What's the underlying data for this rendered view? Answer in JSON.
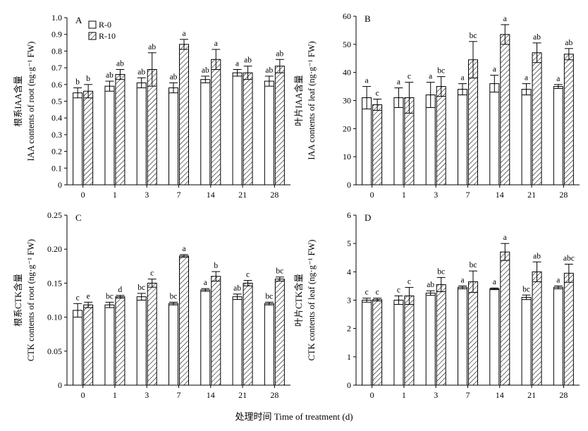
{
  "figure": {
    "xlabel": "处理时间 Time of treatment (d)",
    "legend": [
      {
        "label": "R-0",
        "pattern": "open"
      },
      {
        "label": "R-10",
        "pattern": "hatched"
      }
    ]
  },
  "chart_data": [
    {
      "type": "bar",
      "panel_letter": "A",
      "ylabel_cn": "根系IAA含量",
      "ylabel_en": "IAA contents of root (ng·g⁻¹ FW)",
      "ylim": [
        0,
        1.0
      ],
      "yticks": [
        "0",
        "0.1",
        "0.2",
        "0.3",
        "0.4",
        "0.5",
        "0.6",
        "0.7",
        "0.8",
        "0.9",
        "1.0"
      ],
      "categories": [
        "0",
        "1",
        "3",
        "7",
        "14",
        "21",
        "28"
      ],
      "series": [
        {
          "name": "R-0",
          "values": [
            0.55,
            0.59,
            0.61,
            0.58,
            0.63,
            0.67,
            0.62
          ],
          "err": [
            0.03,
            0.03,
            0.03,
            0.03,
            0.02,
            0.02,
            0.03
          ],
          "labels": [
            "b",
            "ab",
            "ab",
            "ab",
            "ab",
            "a",
            "ab"
          ]
        },
        {
          "name": "R-10",
          "values": [
            0.56,
            0.66,
            0.69,
            0.84,
            0.75,
            0.67,
            0.71
          ],
          "err": [
            0.04,
            0.03,
            0.1,
            0.03,
            0.06,
            0.04,
            0.04
          ],
          "labels": [
            "b",
            "ab",
            "ab",
            "a",
            "a",
            "ab",
            "ab"
          ]
        }
      ]
    },
    {
      "type": "bar",
      "panel_letter": "B",
      "ylabel_cn": "叶片IAA含量",
      "ylabel_en": "IAA contents of leaf (ng·g⁻¹ FW)",
      "ylim": [
        0,
        60
      ],
      "yticks": [
        "0",
        "10",
        "20",
        "30",
        "40",
        "50",
        "60"
      ],
      "categories": [
        "0",
        "1",
        "3",
        "7",
        "14",
        "21",
        "28"
      ],
      "series": [
        {
          "name": "R-0",
          "values": [
            31,
            31,
            32,
            34,
            36,
            34,
            35
          ],
          "err": [
            4,
            3.5,
            4.5,
            2,
            3,
            2,
            0.7
          ],
          "labels": [
            "a",
            "a",
            "a",
            "a",
            "a",
            "a",
            "a"
          ]
        },
        {
          "name": "R-10",
          "values": [
            28.5,
            31,
            35,
            44.5,
            53.5,
            47,
            46.5
          ],
          "err": [
            2,
            5.5,
            3.5,
            6.5,
            3.5,
            3.5,
            2
          ],
          "labels": [
            "c",
            "c",
            "bc",
            "bc",
            "a",
            "ab",
            "ab"
          ]
        }
      ]
    },
    {
      "type": "bar",
      "panel_letter": "C",
      "ylabel_cn": "根系CTK含量",
      "ylabel_en": "CTK contents of root (ng·g⁻¹ FW)",
      "ylim": [
        0,
        0.25
      ],
      "yticks": [
        "0",
        "0.05",
        "0.10",
        "0.15",
        "0.20",
        "0.25"
      ],
      "categories": [
        "0",
        "1",
        "3",
        "7",
        "14",
        "21",
        "28"
      ],
      "series": [
        {
          "name": "R-0",
          "values": [
            0.11,
            0.118,
            0.13,
            0.12,
            0.14,
            0.13,
            0.12
          ],
          "err": [
            0.01,
            0.004,
            0.005,
            0.002,
            0.002,
            0.004,
            0.002
          ],
          "labels": [
            "c",
            "bc",
            "bc",
            "bc",
            "a",
            "ab",
            "bc"
          ]
        },
        {
          "name": "R-10",
          "values": [
            0.118,
            0.13,
            0.15,
            0.19,
            0.16,
            0.15,
            0.156
          ],
          "err": [
            0.004,
            0.002,
            0.006,
            0.002,
            0.007,
            0.004,
            0.003
          ],
          "labels": [
            "e",
            "d",
            "c",
            "a",
            "b",
            "c",
            "bc"
          ]
        }
      ]
    },
    {
      "type": "bar",
      "panel_letter": "D",
      "ylabel_cn": "叶片CTK含量",
      "ylabel_en": "CTK contents of leaf (ng·g⁻¹ FW)",
      "ylim": [
        0,
        6
      ],
      "yticks": [
        "0",
        "1",
        "2",
        "3",
        "4",
        "5",
        "6"
      ],
      "categories": [
        "0",
        "1",
        "3",
        "7",
        "14",
        "21",
        "28"
      ],
      "series": [
        {
          "name": "R-0",
          "values": [
            3.0,
            3.0,
            3.25,
            3.45,
            3.4,
            3.1,
            3.45
          ],
          "err": [
            0.07,
            0.15,
            0.08,
            0.05,
            0.03,
            0.08,
            0.05
          ],
          "labels": [
            "c",
            "c",
            "ab",
            "a",
            "a",
            "bc",
            "a"
          ]
        },
        {
          "name": "R-10",
          "values": [
            3.02,
            3.15,
            3.55,
            3.65,
            4.7,
            4.0,
            3.95
          ],
          "err": [
            0.05,
            0.3,
            0.25,
            0.38,
            0.3,
            0.35,
            0.32
          ],
          "labels": [
            "c",
            "c",
            "bc",
            "bc",
            "a",
            "ab",
            "abc"
          ]
        }
      ]
    }
  ]
}
